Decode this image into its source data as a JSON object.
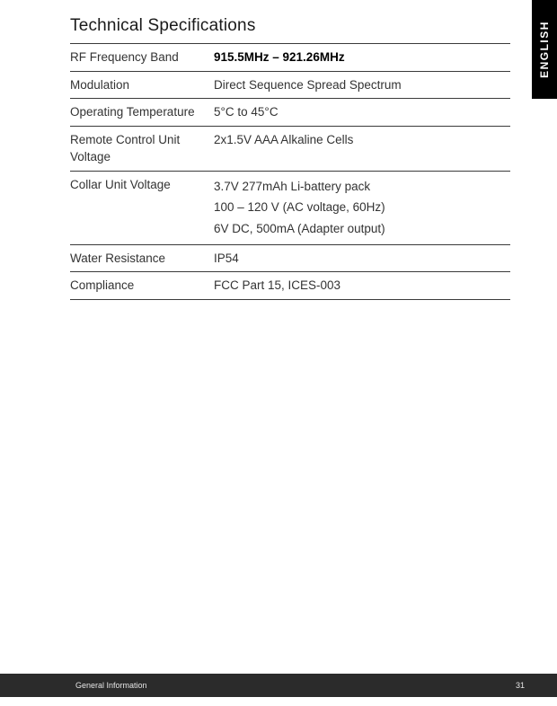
{
  "title": "Technical Specifications",
  "language_tab": "ENGLISH",
  "rows": {
    "0": {
      "label": "RF Frequency Band",
      "value": "915.5MHz – 921.26MHz",
      "bold": true
    },
    "1": {
      "label": "Modulation",
      "value": "Direct Sequence Spread Spectrum"
    },
    "2": {
      "label": "Operating Temperature",
      "value": "5°C to 45°C"
    },
    "3": {
      "label": "Remote Control Unit Voltage",
      "value": "2x1.5V AAA Alkaline Cells"
    },
    "4": {
      "label": "Collar Unit Voltage",
      "lines": {
        "0": "3.7V 277mAh Li-battery pack",
        "1": "100 – 120 V (AC voltage, 60Hz)",
        "2": "6V DC, 500mA (Adapter output)"
      }
    },
    "5": {
      "label": "Water Resistance",
      "value": "IP54"
    },
    "6": {
      "label": "Compliance",
      "value": "FCC Part 15, ICES-003"
    }
  },
  "footer": {
    "section": "General Information",
    "page": "31"
  },
  "colors": {
    "text": "#333333",
    "title": "#1a1a1a",
    "border": "#3a3a3a",
    "tab_bg": "#000000",
    "tab_text": "#ffffff",
    "footer_bg": "#2b2b2b",
    "footer_text": "#e6e6e6",
    "page_bg": "#ffffff"
  },
  "typography": {
    "title_fontsize": 19,
    "body_fontsize": 13.5,
    "footer_fontsize": 9,
    "tab_fontsize": 12
  }
}
